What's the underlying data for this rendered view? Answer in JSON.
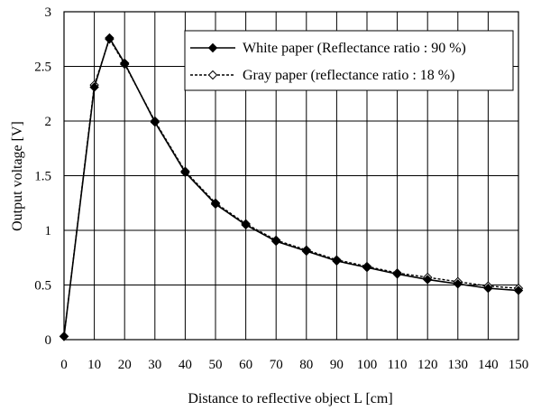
{
  "chart_data": {
    "type": "line",
    "title": "",
    "xlabel": "Distance to reflective object L [cm]",
    "ylabel": "Output voltage [V]",
    "xlim": [
      0,
      150
    ],
    "ylim": [
      0,
      3
    ],
    "xticks": [
      0,
      10,
      20,
      30,
      40,
      50,
      60,
      70,
      80,
      90,
      100,
      110,
      120,
      130,
      140,
      150
    ],
    "yticks": [
      0,
      0.5,
      1,
      1.5,
      2,
      2.5,
      3
    ],
    "ytick_labels": [
      "0",
      "0.5",
      "1",
      "1.5",
      "2",
      "2.5",
      "3"
    ],
    "grid": true,
    "legend_position": "top-right",
    "series": [
      {
        "name": "White paper (Reflectance ratio : 90 %)",
        "marker": "filled-diamond",
        "line_style": "solid",
        "color": "#000000",
        "x": [
          0,
          10,
          15,
          20,
          30,
          40,
          50,
          60,
          70,
          80,
          90,
          100,
          110,
          120,
          130,
          140,
          150
        ],
        "y": [
          0.03,
          2.31,
          2.76,
          2.53,
          1.99,
          1.53,
          1.24,
          1.05,
          0.9,
          0.81,
          0.72,
          0.66,
          0.6,
          0.55,
          0.51,
          0.47,
          0.45
        ]
      },
      {
        "name": "Gray paper (reflectance ratio : 18 %)",
        "marker": "hollow-diamond",
        "line_style": "dashed",
        "color": "#000000",
        "x": [
          0,
          10,
          15,
          20,
          30,
          40,
          50,
          60,
          70,
          80,
          90,
          100,
          110,
          120,
          130,
          140,
          150
        ],
        "y": [
          0.03,
          2.33,
          2.75,
          2.52,
          2.0,
          1.54,
          1.25,
          1.06,
          0.91,
          0.82,
          0.73,
          0.67,
          0.61,
          0.57,
          0.53,
          0.49,
          0.47
        ]
      }
    ]
  }
}
